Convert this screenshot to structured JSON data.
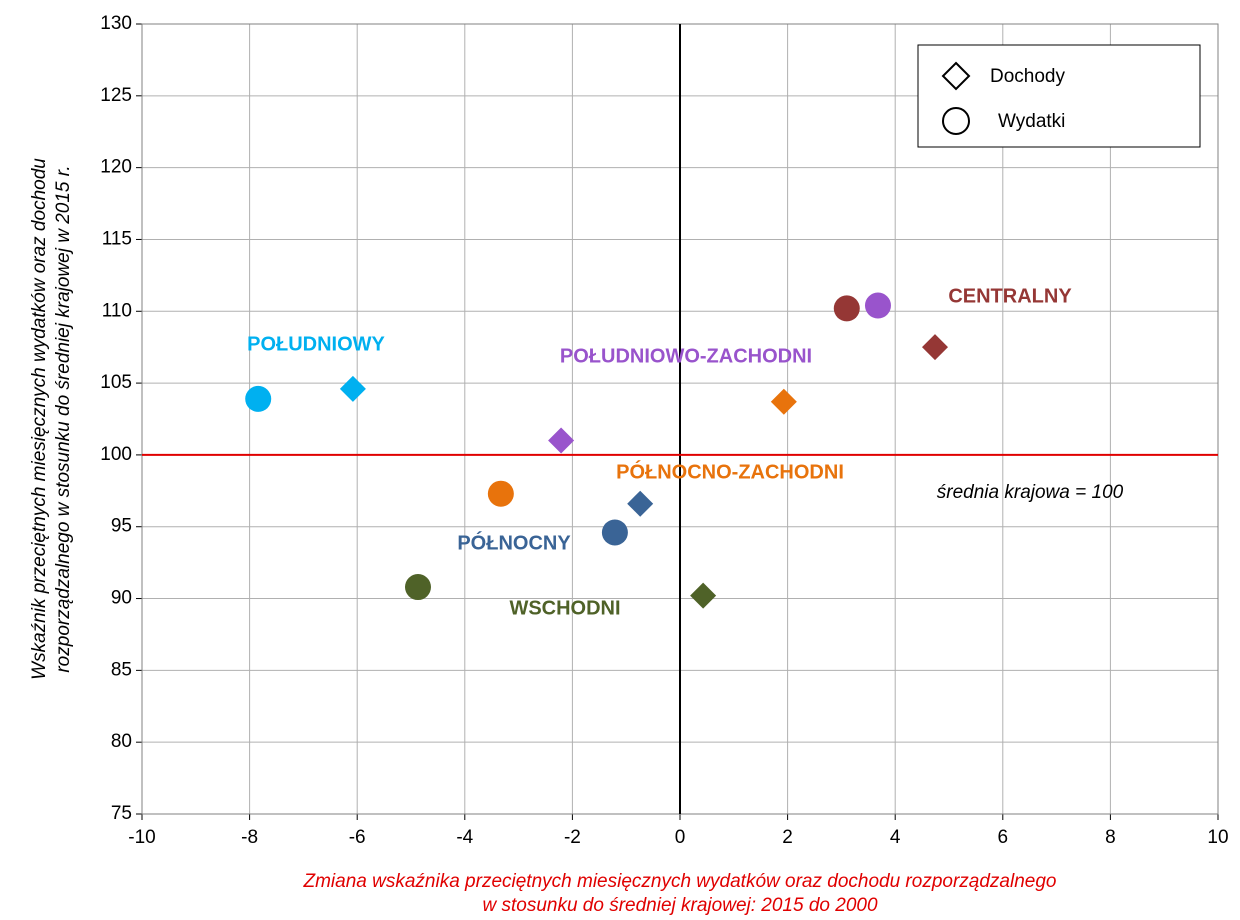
{
  "chart_data": {
    "type": "scatter",
    "xlim": [
      -10,
      10
    ],
    "ylim": [
      75,
      130
    ],
    "xticks": [
      -10,
      -8,
      -6,
      -4,
      -2,
      0,
      2,
      4,
      6,
      8,
      10
    ],
    "yticks": [
      75,
      80,
      85,
      90,
      95,
      100,
      105,
      110,
      115,
      120,
      125,
      130
    ],
    "grid": true,
    "x_label": [
      "Zmiana wskaźnika przeciętnych miesięcznych wydatków oraz dochodu rozporządzalnego",
      "w stosunku do średniej krajowej: 2015 do 2000"
    ],
    "y_label": [
      "Wskaźnik przeciętnych miesięcznych wydatków oraz dochodu",
      "rozporządzalnego w stosunku do średniej krajowej w 2015 r."
    ],
    "legend": "top-right",
    "series": [
      {
        "name": "Dochody",
        "marker": "diamond",
        "x": [
          -6.08,
          -2.21,
          -0.74,
          0.43,
          1.93,
          4.74
        ],
        "values": [
          104.6,
          101.0,
          96.6,
          90.2,
          103.7,
          107.5
        ],
        "colors": [
          "#00b0f0",
          "#9954cc",
          "#3a6496",
          "#4f6228",
          "#e8730c",
          "#953735"
        ]
      },
      {
        "name": "Wydatki",
        "marker": "circle",
        "x": [
          -7.84,
          -4.87,
          -3.33,
          -1.21,
          3.1,
          3.68
        ],
        "values": [
          103.9,
          90.8,
          97.3,
          94.6,
          110.2,
          110.4
        ],
        "colors": [
          "#00b0f0",
          "#4f6228",
          "#e8730c",
          "#3a6496",
          "#953735",
          "#9954cc"
        ]
      }
    ],
    "reference_line": {
      "y": 100,
      "label": "średnia krajowa = 100",
      "color": "#e00000"
    },
    "annotations": [
      {
        "text": "POŁUDNIOWY",
        "color": "#00b0f0"
      },
      {
        "text": "POŁUDNIOWO-ZACHODNI",
        "color": "#9954cc"
      },
      {
        "text": "CENTRALNY",
        "color": "#953735"
      },
      {
        "text": "PÓŁNOCNO-ZACHODNI",
        "color": "#e8730c"
      },
      {
        "text": "PÓŁNOCNY",
        "color": "#3a6496"
      },
      {
        "text": "WSCHODNI",
        "color": "#4f6228"
      }
    ]
  }
}
